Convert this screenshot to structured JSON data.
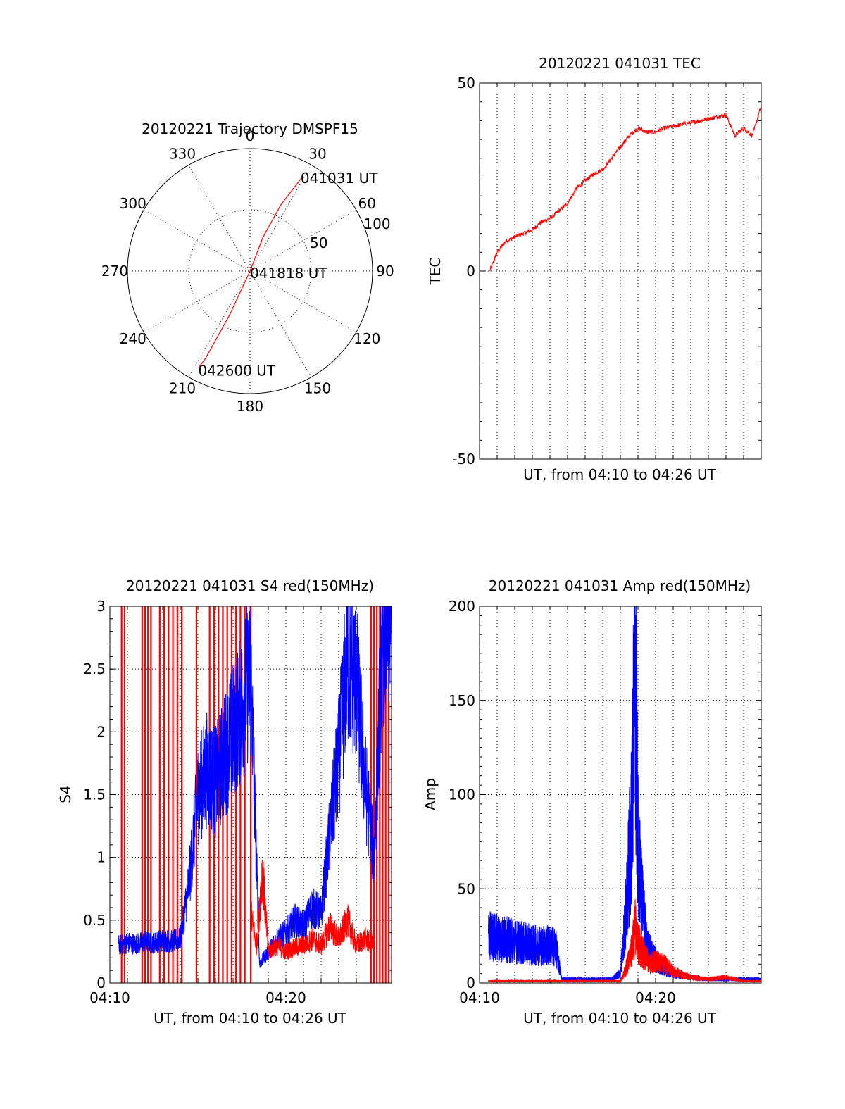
{
  "chart_data": [
    {
      "type": "polar",
      "title": "20120221 Trajectory DMSPF15",
      "azimuth_labels": [
        "0",
        "30",
        "60",
        "90",
        "120",
        "150",
        "180",
        "210",
        "240",
        "270",
        "300",
        "330"
      ],
      "radius_labels": [
        "50",
        "100"
      ],
      "radius_range": [
        0,
        100
      ],
      "grid": true,
      "colors": {
        "trajectory": "#ff0000"
      },
      "series": [
        {
          "points": [
            {
              "azimuth": 29,
              "radius": 87
            },
            {
              "azimuth": 25,
              "radius": 60
            },
            {
              "azimuth": 21,
              "radius": 30
            },
            {
              "azimuth": 0,
              "radius": 0
            },
            {
              "azimuth": 205,
              "radius": 40
            },
            {
              "azimuth": 207,
              "radius": 80
            },
            {
              "azimuth": 208,
              "radius": 89
            }
          ]
        }
      ],
      "annotations": [
        {
          "text": "041031 UT",
          "azimuth": 28,
          "radius": 88
        },
        {
          "text": "041818 UT",
          "azimuth": 0,
          "radius": 0
        },
        {
          "text": "042600 UT",
          "azimuth": 208,
          "radius": 90
        }
      ]
    },
    {
      "type": "line",
      "title": "20120221 041031 TEC",
      "xlabel": "UT, from 04:10 to 04:26 UT",
      "ylabel": "TEC",
      "xlim": [
        "04:10",
        "04:26"
      ],
      "ylim": [
        -50,
        50
      ],
      "yticks": [
        "-50",
        "0",
        "50"
      ],
      "xticks": [],
      "grid": true,
      "colors": {
        "red": "#ff0000"
      },
      "series": [
        {
          "color": "#ff0000",
          "x": [
            "04:10:35",
            "04:11:00",
            "04:11:30",
            "04:12:00",
            "04:12:30",
            "04:13:00",
            "04:13:30",
            "04:14:00",
            "04:14:30",
            "04:15:00",
            "04:15:30",
            "04:16:00",
            "04:16:30",
            "04:17:00",
            "04:17:30",
            "04:18:00",
            "04:18:30",
            "04:19:00",
            "04:19:30",
            "04:20:00",
            "04:20:30",
            "04:21:00",
            "04:21:30",
            "04:22:00",
            "04:22:30",
            "04:23:00",
            "04:23:30",
            "04:24:00",
            "04:24:30",
            "04:25:00",
            "04:25:30",
            "04:26:00"
          ],
          "y": [
            0,
            5,
            8,
            9,
            10,
            11,
            13,
            14,
            16,
            18,
            22,
            24,
            26,
            27,
            30,
            33,
            36,
            38,
            37,
            37,
            38,
            38.5,
            39,
            39.5,
            40,
            40.5,
            41,
            41.5,
            36,
            38,
            36,
            44
          ]
        }
      ]
    },
    {
      "type": "line",
      "title": "20120221 041031 S4 red(150MHz)",
      "xlabel": "UT, from 04:10 to 04:26 UT",
      "ylabel": "S4",
      "xlim": [
        "04:10",
        "04:26"
      ],
      "ylim": [
        0,
        3
      ],
      "yticks": [
        "0",
        "0.5",
        "1",
        "1.5",
        "2",
        "2.5",
        "3"
      ],
      "xticks": [
        "04:10",
        "04:20"
      ],
      "grid": true,
      "colors": {
        "red": "#ff0000",
        "blue": "#0000ff"
      },
      "series": [
        {
          "color": "#0000ff",
          "x": [
            "04:10:30",
            "04:11:00",
            "04:11:30",
            "04:12:00",
            "04:12:30",
            "04:13:00",
            "04:13:30",
            "04:14:00",
            "04:14:30",
            "04:15:00",
            "04:15:30",
            "04:16:00",
            "04:16:30",
            "04:17:00",
            "04:17:30",
            "04:18:00",
            "04:18:30",
            "04:19:00",
            "04:19:30",
            "04:20:00",
            "04:20:30",
            "04:21:00",
            "04:21:30",
            "04:22:00",
            "04:22:30",
            "04:23:00",
            "04:23:30",
            "04:24:00",
            "04:24:30",
            "04:25:00",
            "04:25:30",
            "04:26:00"
          ],
          "y": [
            0.3,
            0.32,
            0.31,
            0.33,
            0.32,
            0.34,
            0.33,
            0.35,
            0.8,
            1.5,
            1.7,
            1.6,
            1.8,
            2.0,
            2.2,
            2.5,
            0.15,
            0.25,
            0.35,
            0.4,
            0.5,
            0.45,
            0.6,
            0.55,
            1.2,
            1.8,
            2.6,
            2.4,
            1.6,
            1.0,
            2.8,
            3.0
          ]
        },
        {
          "color": "#ff0000",
          "x": [
            "04:18:00",
            "04:18:20",
            "04:18:40",
            "04:19:00",
            "04:19:30",
            "04:20:00",
            "04:20:30",
            "04:21:00",
            "04:21:30",
            "04:22:00",
            "04:22:30",
            "04:23:00",
            "04:23:30",
            "04:24:00",
            "04:24:30",
            "04:25:00"
          ],
          "y": [
            0.55,
            0.3,
            0.9,
            0.25,
            0.3,
            0.25,
            0.28,
            0.3,
            0.35,
            0.3,
            0.45,
            0.35,
            0.5,
            0.3,
            0.35,
            0.3
          ]
        }
      ],
      "spikes": {
        "color": "#ff0000",
        "x": [
          "04:10:40",
          "04:10:50",
          "04:11:50",
          "04:12:00",
          "04:12:10",
          "04:12:20",
          "04:12:50",
          "04:13:05",
          "04:13:20",
          "04:13:35",
          "04:13:50",
          "04:14:05",
          "04:14:55",
          "04:15:40",
          "04:15:55",
          "04:16:10",
          "04:16:25",
          "04:16:40",
          "04:16:55",
          "04:17:10",
          "04:17:25",
          "04:17:40",
          "04:18:00",
          "04:24:50",
          "04:25:00",
          "04:25:10",
          "04:25:20",
          "04:25:30",
          "04:25:40",
          "04:25:50"
        ]
      }
    },
    {
      "type": "line",
      "title": "20120221 041031 Amp red(150MHz)",
      "xlabel": "UT, from 04:10 to 04:26 UT",
      "ylabel": "Amp",
      "xlim": [
        "04:10",
        "04:26"
      ],
      "ylim": [
        0,
        200
      ],
      "yticks": [
        "0",
        "50",
        "100",
        "150",
        "200"
      ],
      "xticks": [
        "04:10",
        "04:20"
      ],
      "grid": true,
      "colors": {
        "red": "#ff0000",
        "blue": "#0000ff"
      },
      "series": [
        {
          "color": "#0000ff",
          "x": [
            "04:10:30",
            "04:11:00",
            "04:11:30",
            "04:12:00",
            "04:12:30",
            "04:13:00",
            "04:13:30",
            "04:14:00",
            "04:14:20",
            "04:14:40",
            "04:15:30",
            "04:16:30",
            "04:17:30",
            "04:18:00",
            "04:18:20",
            "04:18:40",
            "04:18:50",
            "04:19:00",
            "04:19:10",
            "04:19:30",
            "04:20:00",
            "04:20:30",
            "04:21:00",
            "04:22:00",
            "04:23:00",
            "04:24:00",
            "04:25:00",
            "04:26:00"
          ],
          "y": [
            25,
            24,
            23,
            22,
            21,
            20,
            20,
            20,
            19,
            2,
            2,
            2,
            2,
            5,
            40,
            90,
            175,
            80,
            50,
            20,
            12,
            8,
            5,
            3,
            2,
            2,
            2,
            2
          ]
        },
        {
          "color": "#ff0000",
          "x": [
            "04:10:30",
            "04:18:00",
            "04:18:20",
            "04:18:40",
            "04:18:50",
            "04:19:00",
            "04:19:20",
            "04:19:40",
            "04:20:00",
            "04:20:30",
            "04:21:00",
            "04:22:00",
            "04:23:00",
            "04:24:00",
            "04:25:00",
            "04:26:00"
          ],
          "y": [
            1,
            1,
            8,
            18,
            30,
            22,
            15,
            10,
            12,
            10,
            6,
            3,
            2,
            3,
            1,
            1
          ]
        }
      ]
    }
  ]
}
